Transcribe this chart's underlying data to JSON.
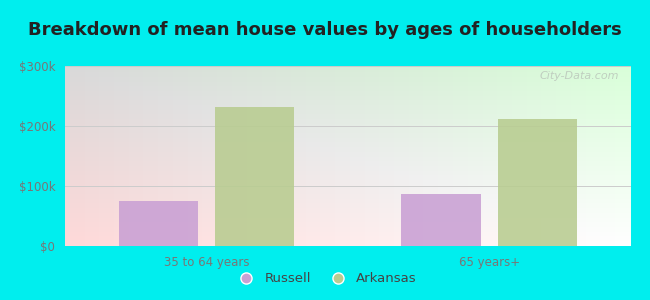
{
  "title": "Breakdown of mean house values by ages of householders",
  "categories": [
    "35 to 64 years",
    "65 years+"
  ],
  "series": {
    "Russell": [
      75000,
      87000
    ],
    "Arkansas": [
      232000,
      212000
    ]
  },
  "bar_colors": {
    "Russell": "#c9a0d4",
    "Arkansas": "#b8cc90"
  },
  "ylim": [
    0,
    300000
  ],
  "yticks": [
    0,
    100000,
    200000,
    300000
  ],
  "ytick_labels": [
    "$0",
    "$100k",
    "$200k",
    "$300k"
  ],
  "background_color": "#00eeee",
  "title_fontsize": 13,
  "tick_fontsize": 8.5,
  "legend_fontsize": 9.5,
  "watermark": "City-Data.com",
  "bar_width": 0.28
}
